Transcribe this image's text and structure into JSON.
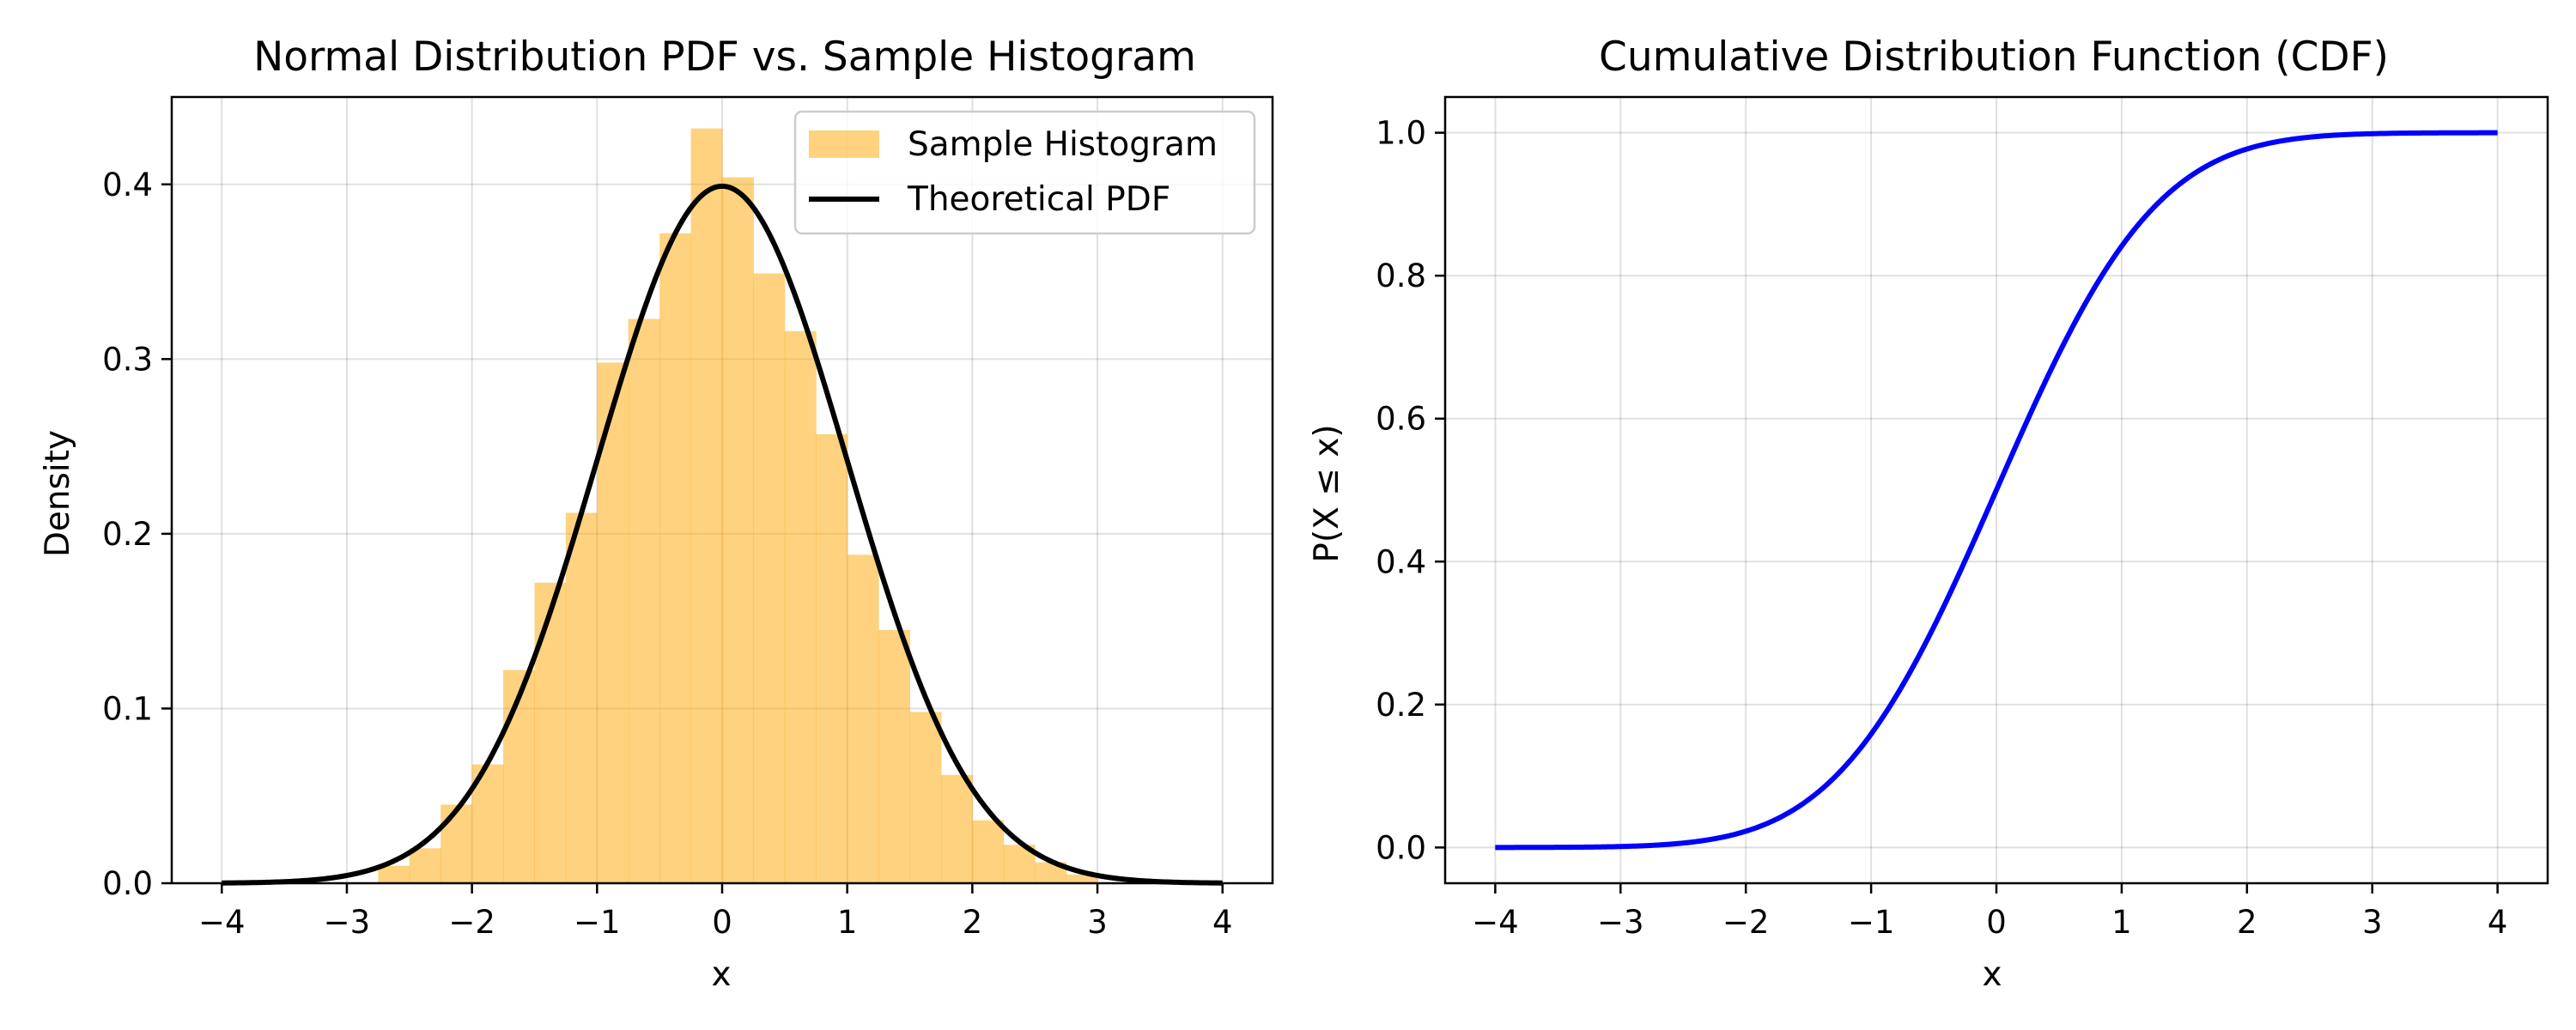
{
  "chart_data": [
    {
      "type": "bar",
      "title": "Normal Distribution PDF vs. Sample Histogram",
      "xlabel": "x",
      "ylabel": "Density",
      "xlim": [
        -4.4,
        4.4
      ],
      "ylim": [
        0,
        0.45
      ],
      "x_ticks": [
        -4,
        -3,
        -2,
        -1,
        0,
        1,
        2,
        3,
        4
      ],
      "x_tick_labels": [
        "−4",
        "−3",
        "−2",
        "−1",
        "0",
        "1",
        "2",
        "3",
        "4"
      ],
      "y_ticks": [
        0.0,
        0.1,
        0.2,
        0.3,
        0.4
      ],
      "y_tick_labels": [
        "0.0",
        "0.1",
        "0.2",
        "0.3",
        "0.4"
      ],
      "grid": true,
      "legend": {
        "position": "top-right",
        "entries": [
          "Sample Histogram",
          "Theoretical PDF"
        ]
      },
      "series": [
        {
          "name": "Sample Histogram",
          "type": "histogram",
          "color": "#ffa500",
          "alpha": 0.5,
          "bin_edges": [
            -2.75,
            -2.5,
            -2.25,
            -2.0,
            -1.75,
            -1.5,
            -1.25,
            -1.0,
            -0.75,
            -0.5,
            -0.25,
            0.0,
            0.25,
            0.5,
            0.75,
            1.0,
            1.25,
            1.5,
            1.75,
            2.0,
            2.25,
            2.5,
            2.75,
            3.0
          ],
          "values": [
            0.01,
            0.02,
            0.045,
            0.068,
            0.122,
            0.172,
            0.212,
            0.298,
            0.323,
            0.372,
            0.432,
            0.404,
            0.349,
            0.316,
            0.257,
            0.188,
            0.145,
            0.098,
            0.062,
            0.036,
            0.022,
            0.012,
            0.005
          ]
        },
        {
          "name": "Theoretical PDF",
          "type": "line",
          "function": "normal_pdf",
          "mean": 0,
          "std": 1,
          "x_range": [
            -4,
            4
          ],
          "color": "#000000"
        }
      ]
    },
    {
      "type": "line",
      "title": "Cumulative Distribution Function (CDF)",
      "xlabel": "x",
      "ylabel": "P(X ≤ x)",
      "xlim": [
        -4.4,
        4.4
      ],
      "ylim": [
        -0.05,
        1.05
      ],
      "x_ticks": [
        -4,
        -3,
        -2,
        -1,
        0,
        1,
        2,
        3,
        4
      ],
      "x_tick_labels": [
        "−4",
        "−3",
        "−2",
        "−1",
        "0",
        "1",
        "2",
        "3",
        "4"
      ],
      "y_ticks": [
        0.0,
        0.2,
        0.4,
        0.6,
        0.8,
        1.0
      ],
      "y_tick_labels": [
        "0.0",
        "0.2",
        "0.4",
        "0.6",
        "0.8",
        "1.0"
      ],
      "grid": true,
      "series": [
        {
          "type": "line",
          "function": "normal_cdf",
          "mean": 0,
          "std": 1,
          "x_range": [
            -4,
            4
          ],
          "color": "#0000ff"
        }
      ]
    }
  ]
}
